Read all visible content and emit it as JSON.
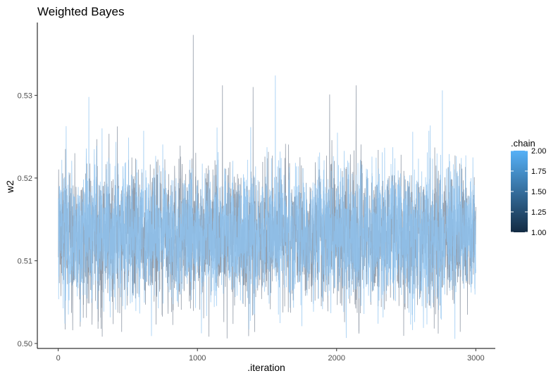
{
  "chart_data": {
    "type": "line",
    "title": "Weighted Bayes",
    "xlabel": ".iteration",
    "ylabel": "w2",
    "xlim": [
      -150,
      3140
    ],
    "ylim": [
      0.4994,
      0.5388
    ],
    "x_ticks": [
      0,
      1000,
      2000,
      3000
    ],
    "x_tick_labels": [
      "0",
      "1000",
      "2000",
      "3000"
    ],
    "y_ticks": [
      0.5,
      0.51,
      0.52,
      0.53
    ],
    "y_tick_labels": [
      "0.50",
      "0.51",
      "0.52",
      "0.53"
    ],
    "grid": false,
    "n_iterations": 3000,
    "series": [
      {
        "name": "chain 1",
        "chain": 1,
        "color": "#8c96a3",
        "center": 0.5132,
        "sd": 0.0042,
        "spikes": [
          {
            "iteration": 970,
            "value": 0.5373
          },
          {
            "iteration": 1180,
            "value": 0.5312
          },
          {
            "iteration": 1400,
            "value": 0.531
          },
          {
            "iteration": 1950,
            "value": 0.5301
          },
          {
            "iteration": 2140,
            "value": 0.5312
          },
          {
            "iteration": 2160,
            "value": 0.5012
          },
          {
            "iteration": 2730,
            "value": 0.5012
          },
          {
            "iteration": 50,
            "value": 0.5017
          }
        ]
      },
      {
        "name": "chain 2",
        "chain": 2,
        "color": "#8ec3f0",
        "center": 0.5132,
        "sd": 0.0042,
        "spikes": [
          {
            "iteration": 1560,
            "value": 0.5324
          },
          {
            "iteration": 2760,
            "value": 0.5306
          },
          {
            "iteration": 220,
            "value": 0.5298
          },
          {
            "iteration": 670,
            "value": 0.5009
          },
          {
            "iteration": 1370,
            "value": 0.5017
          }
        ]
      }
    ],
    "legend": {
      "title": ".chain",
      "position": "right",
      "labels": [
        "2.00",
        "1.75",
        "1.50",
        "1.25",
        "1.00"
      ],
      "values": [
        2.0,
        1.75,
        1.5,
        1.25,
        1.0
      ],
      "color_low": "#132b43",
      "color_high": "#56b1f7"
    }
  }
}
